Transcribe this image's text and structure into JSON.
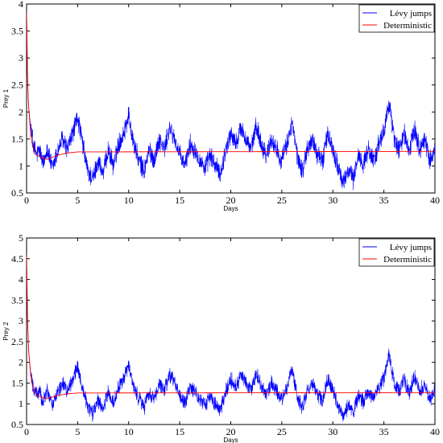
{
  "chart_data": [
    {
      "type": "line",
      "xlabel": "Days",
      "ylabel": "Prey 1",
      "xlim": [
        0,
        40
      ],
      "ylim": [
        0.5,
        4
      ],
      "xticks": [
        "0",
        "5",
        "10",
        "15",
        "20",
        "25",
        "30",
        "35",
        "40"
      ],
      "yticks": [
        "0.5",
        "1",
        "1.5",
        "2",
        "2.5",
        "3",
        "3.5",
        "4"
      ],
      "legend_position": "top-right",
      "grid": false,
      "series": [
        {
          "name": "Lévy jumps",
          "color": "#0000ff",
          "x": [
            0,
            0.1,
            0.2,
            0.3,
            0.5,
            0.7,
            1.0,
            1.3,
            1.6,
            2.0,
            2.5,
            3.0,
            3.5,
            4.0,
            4.5,
            5.0,
            5.5,
            6.0,
            6.5,
            7.0,
            7.5,
            8.0,
            8.5,
            9.0,
            9.5,
            10.0,
            10.5,
            11.0,
            11.5,
            12.0,
            12.5,
            13.0,
            13.5,
            14.0,
            14.5,
            15.0,
            15.5,
            16.0,
            16.5,
            17.0,
            17.5,
            18.0,
            18.5,
            19.0,
            19.5,
            20.0,
            20.5,
            21.0,
            21.5,
            22.0,
            22.5,
            23.0,
            23.5,
            24.0,
            24.5,
            25.0,
            25.5,
            26.0,
            26.5,
            27.0,
            27.5,
            28.0,
            28.5,
            29.0,
            29.5,
            30.0,
            30.5,
            31.0,
            31.5,
            32.0,
            32.5,
            33.0,
            33.5,
            34.0,
            34.5,
            35.0,
            35.5,
            36.0,
            36.5,
            37.0,
            37.5,
            38.0,
            38.5,
            39.0,
            39.5,
            40.0
          ],
          "y": [
            3.9,
            2.6,
            2.1,
            1.9,
            1.6,
            1.35,
            1.2,
            1.3,
            1.0,
            1.35,
            0.95,
            1.25,
            1.5,
            1.3,
            1.6,
            1.9,
            1.4,
            0.9,
            0.75,
            1.1,
            0.85,
            1.3,
            1.0,
            1.4,
            1.6,
            1.95,
            1.4,
            1.1,
            0.9,
            1.3,
            1.1,
            1.5,
            1.3,
            1.7,
            1.5,
            1.2,
            1.0,
            1.4,
            1.3,
            1.1,
            0.95,
            1.2,
            1.0,
            0.85,
            1.3,
            1.6,
            1.4,
            1.7,
            1.5,
            1.3,
            1.75,
            1.4,
            1.2,
            1.5,
            1.3,
            1.1,
            1.4,
            1.8,
            1.2,
            0.9,
            1.3,
            1.5,
            1.2,
            1.1,
            1.6,
            1.3,
            1.0,
            0.65,
            0.95,
            0.75,
            1.2,
            1.05,
            1.3,
            1.1,
            1.4,
            1.6,
            2.2,
            1.5,
            1.3,
            1.6,
            1.25,
            1.7,
            1.3,
            1.5,
            1.1,
            1.3
          ]
        },
        {
          "name": "Deterministic",
          "color": "#ff0000",
          "x": [
            0,
            0.1,
            0.2,
            0.4,
            0.6,
            1.0,
            1.5,
            2.0,
            2.5,
            3.0,
            4.0,
            5.0,
            40.0
          ],
          "y": [
            3.85,
            2.6,
            2.1,
            1.6,
            1.35,
            1.2,
            1.15,
            1.12,
            1.16,
            1.2,
            1.24,
            1.26,
            1.27
          ]
        }
      ]
    },
    {
      "type": "line",
      "xlabel": "Days",
      "ylabel": "Prey 2",
      "xlim": [
        0,
        40
      ],
      "ylim": [
        0.5,
        5
      ],
      "xticks": [
        "0",
        "5",
        "10",
        "15",
        "20",
        "25",
        "30",
        "35",
        "40"
      ],
      "yticks": [
        "0.5",
        "1",
        "1.5",
        "2",
        "2.5",
        "3",
        "3.5",
        "4",
        "4.5",
        "5"
      ],
      "legend_position": "top-right",
      "grid": false,
      "series": [
        {
          "name": "Lévy jumps",
          "color": "#0000ff",
          "x": [
            0,
            0.1,
            0.2,
            0.3,
            0.5,
            0.7,
            1.0,
            1.3,
            1.6,
            2.0,
            2.5,
            3.0,
            3.5,
            4.0,
            4.5,
            5.0,
            5.5,
            6.0,
            6.5,
            7.0,
            7.5,
            8.0,
            8.5,
            9.0,
            9.5,
            10.0,
            10.5,
            11.0,
            11.5,
            12.0,
            12.5,
            13.0,
            13.5,
            14.0,
            14.5,
            15.0,
            15.5,
            16.0,
            16.5,
            17.0,
            17.5,
            18.0,
            18.5,
            19.0,
            19.5,
            20.0,
            20.5,
            21.0,
            21.5,
            22.0,
            22.5,
            23.0,
            23.5,
            24.0,
            24.5,
            25.0,
            25.5,
            26.0,
            26.5,
            27.0,
            27.5,
            28.0,
            28.5,
            29.0,
            29.5,
            30.0,
            30.5,
            31.0,
            31.5,
            32.0,
            32.5,
            33.0,
            33.5,
            34.0,
            34.5,
            35.0,
            35.5,
            36.0,
            36.5,
            37.0,
            37.5,
            38.0,
            38.5,
            39.0,
            39.5,
            40.0
          ],
          "y": [
            4.5,
            3.0,
            2.3,
            2.0,
            1.6,
            1.35,
            1.2,
            1.3,
            1.0,
            1.35,
            0.95,
            1.25,
            1.5,
            1.3,
            1.6,
            1.9,
            1.4,
            0.9,
            0.75,
            1.1,
            0.85,
            1.3,
            1.0,
            1.4,
            1.6,
            1.95,
            1.4,
            1.1,
            0.9,
            1.3,
            1.1,
            1.5,
            1.3,
            1.7,
            1.5,
            1.2,
            1.0,
            1.4,
            1.3,
            1.1,
            0.95,
            1.2,
            1.0,
            0.85,
            1.3,
            1.6,
            1.4,
            1.7,
            1.5,
            1.3,
            1.75,
            1.4,
            1.2,
            1.5,
            1.3,
            1.1,
            1.4,
            1.8,
            1.2,
            0.9,
            1.3,
            1.5,
            1.2,
            1.1,
            1.6,
            1.3,
            1.0,
            0.7,
            0.95,
            0.8,
            1.2,
            1.05,
            1.3,
            1.1,
            1.4,
            1.6,
            2.2,
            1.5,
            1.3,
            1.6,
            1.25,
            1.7,
            1.3,
            1.5,
            1.1,
            1.3
          ]
        },
        {
          "name": "Deterministic",
          "color": "#ff0000",
          "x": [
            0,
            0.1,
            0.2,
            0.4,
            0.6,
            1.0,
            1.5,
            2.0,
            2.5,
            3.0,
            4.0,
            5.0,
            40.0
          ],
          "y": [
            4.6,
            3.0,
            2.3,
            1.7,
            1.4,
            1.2,
            1.15,
            1.12,
            1.16,
            1.2,
            1.24,
            1.26,
            1.27
          ]
        }
      ]
    }
  ]
}
